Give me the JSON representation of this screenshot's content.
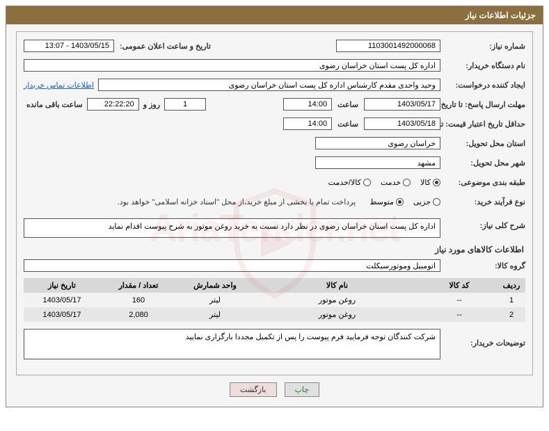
{
  "panel": {
    "title": "جزئیات اطلاعات نیاز"
  },
  "fields": {
    "need_number_label": "شماره نیاز:",
    "need_number": "1103001492000068",
    "announce_datetime_label": "تاریخ و ساعت اعلان عمومی:",
    "announce_datetime": "1403/05/15 - 13:07",
    "buyer_org_label": "نام دستگاه خریدار:",
    "buyer_org": "اداره کل پست استان خراسان رضوی",
    "requester_label": "ایجاد کننده درخواست:",
    "requester": "وحید واحدی مقدم کارشناس اداره کل پست استان خراسان رضوی",
    "buyer_contact_link": "اطلاعات تماس خریدار",
    "response_deadline_label": "مهلت ارسال پاسخ: تا تاریخ:",
    "response_deadline_date": "1403/05/17",
    "time_label": "ساعت",
    "response_deadline_time": "14:00",
    "days_remaining": "1",
    "days_and_label": "روز و",
    "hours_remaining": "22:22:20",
    "remaining_label": "ساعت باقی مانده",
    "validity_label": "حداقل تاریخ اعتبار قیمت: تا تاریخ:",
    "validity_date": "1403/05/18",
    "validity_time": "14:00",
    "delivery_province_label": "استان محل تحویل:",
    "delivery_province": "خراسان رضوی",
    "delivery_city_label": "شهر محل تحویل:",
    "delivery_city": "مشهد",
    "classification_label": "طبقه بندی موضوعی:",
    "purchase_type_label": "نوع فرآیند خرید:",
    "payment_note": "پرداخت تمام یا بخشی از مبلغ خرید،از محل \"اسناد خزانه اسلامی\" خواهد بود.",
    "general_desc_label": "شرح کلی نیاز:",
    "general_desc": "اداره کل پست استان خراسان رضوی در نظر دارد نسبت به خرید روغن موتور به شرح پیوست اقدام نماید",
    "goods_info_title": "اطلاعات کالاهای مورد نیاز",
    "goods_group_label": "گروه کالا:",
    "goods_group": "اتومبیل وموتورسیکلت",
    "buyer_notes_label": "توضیحات خریدار:",
    "buyer_notes": "شرکت کنندگان توجه فرمایید فرم پیوست را پس از تکمیل مجددا بارگزاری نمایید"
  },
  "radios": {
    "classification": [
      {
        "label": "کالا",
        "checked": true
      },
      {
        "label": "خدمت",
        "checked": false
      },
      {
        "label": "کالا/خدمت",
        "checked": false
      }
    ],
    "purchase_type": [
      {
        "label": "جزیی",
        "checked": false
      },
      {
        "label": "متوسط",
        "checked": true
      }
    ]
  },
  "table": {
    "headers": [
      "ردیف",
      "کد کالا",
      "نام کالا",
      "واحد شمارش",
      "تعداد / مقدار",
      "تاریخ نیاز"
    ],
    "rows": [
      [
        "1",
        "--",
        "روغن موتور",
        "لیتر",
        "160",
        "1403/05/17"
      ],
      [
        "2",
        "--",
        "روغن موتور",
        "لیتر",
        "2,080",
        "1403/05/17"
      ]
    ]
  },
  "buttons": {
    "print": "چاپ",
    "back": "بازگشت"
  },
  "watermark_text": "AriaTender.net"
}
